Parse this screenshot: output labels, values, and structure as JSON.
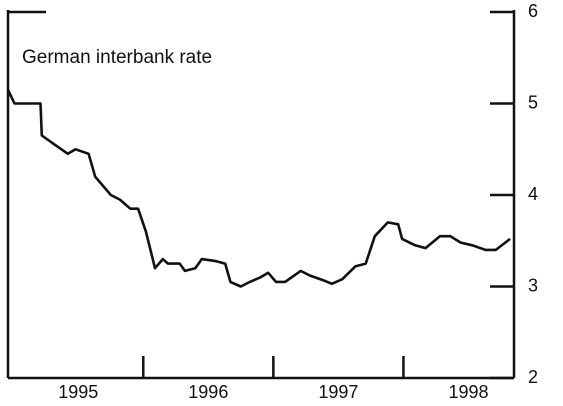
{
  "chart_data": {
    "type": "line",
    "annotation": "German interbank rate",
    "x": [
      1994.96,
      1995.01,
      1995.21,
      1995.22,
      1995.32,
      1995.42,
      1995.48,
      1995.58,
      1995.63,
      1995.75,
      1995.82,
      1995.9,
      1995.96,
      1996.02,
      1996.09,
      1996.15,
      1996.19,
      1996.28,
      1996.32,
      1996.4,
      1996.45,
      1996.55,
      1996.63,
      1996.67,
      1996.75,
      1996.82,
      1996.9,
      1996.96,
      1997.02,
      1997.09,
      1997.21,
      1997.28,
      1997.38,
      1997.45,
      1997.53,
      1997.63,
      1997.71,
      1997.78,
      1997.88,
      1997.96,
      1997.99,
      1998.09,
      1998.17,
      1998.28,
      1998.36,
      1998.44,
      1998.53,
      1998.63,
      1998.71,
      1998.82
    ],
    "series": [
      {
        "name": "German interbank rate",
        "color": "#111111",
        "values": [
          5.15,
          5.0,
          5.0,
          4.65,
          4.55,
          4.45,
          4.5,
          4.45,
          4.2,
          4.0,
          3.95,
          3.85,
          3.85,
          3.6,
          3.2,
          3.3,
          3.25,
          3.25,
          3.17,
          3.2,
          3.3,
          3.28,
          3.25,
          3.05,
          3.0,
          3.05,
          3.1,
          3.15,
          3.05,
          3.05,
          3.17,
          3.12,
          3.07,
          3.03,
          3.08,
          3.22,
          3.25,
          3.55,
          3.7,
          3.68,
          3.52,
          3.45,
          3.42,
          3.55,
          3.55,
          3.48,
          3.45,
          3.4,
          3.4,
          3.52
        ]
      }
    ],
    "xlim": [
      1994.96,
      1998.85
    ],
    "xticks": [
      {
        "value": 1995.5,
        "label": "1995"
      },
      {
        "value": 1996.5,
        "label": "1996"
      },
      {
        "value": 1997.5,
        "label": "1997"
      },
      {
        "value": 1998.5,
        "label": "1998"
      }
    ],
    "year_boundaries": [
      1996,
      1997,
      1998
    ],
    "ylim": [
      2,
      6
    ],
    "yticks": [
      2,
      3,
      4,
      5,
      6
    ],
    "y_axis_side": "right"
  }
}
